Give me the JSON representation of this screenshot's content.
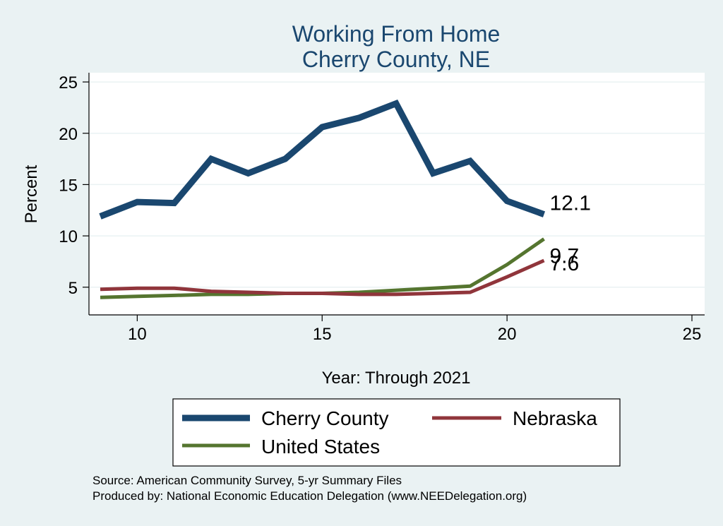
{
  "chart_data": {
    "type": "line",
    "title": [
      "Working From Home",
      "Cherry County, NE"
    ],
    "xlabel": "Year: Through 2021",
    "ylabel": "Percent",
    "xlim": [
      9,
      25
    ],
    "ylim": [
      2.3,
      25.9
    ],
    "xticks": [
      10,
      15,
      20,
      25
    ],
    "yticks": [
      5,
      10,
      15,
      20,
      25
    ],
    "grid": "horizontal",
    "legend_position": "bottom",
    "series": [
      {
        "name": "Cherry County",
        "color": "#1A476F",
        "x": [
          9,
          10,
          11,
          12,
          13,
          14,
          15,
          16,
          17,
          18,
          19,
          20,
          21
        ],
        "values": [
          11.9,
          13.3,
          13.2,
          17.5,
          16.1,
          17.5,
          20.6,
          21.5,
          22.9,
          16.1,
          17.3,
          13.4,
          12.1
        ],
        "end_label": "12.1"
      },
      {
        "name": "Nebraska",
        "color": "#90353B",
        "x": [
          9,
          10,
          11,
          12,
          13,
          14,
          15,
          16,
          17,
          18,
          19,
          20,
          21
        ],
        "values": [
          4.8,
          4.9,
          4.9,
          4.6,
          4.5,
          4.4,
          4.4,
          4.3,
          4.3,
          4.4,
          4.5,
          6.0,
          7.6
        ],
        "end_label": "7.6"
      },
      {
        "name": "United States",
        "color": "#55752F",
        "x": [
          9,
          10,
          11,
          12,
          13,
          14,
          15,
          16,
          17,
          18,
          19,
          20,
          21
        ],
        "values": [
          4.0,
          4.1,
          4.2,
          4.3,
          4.3,
          4.4,
          4.4,
          4.5,
          4.7,
          4.9,
          5.1,
          7.2,
          9.7
        ],
        "end_label": "9.7"
      }
    ],
    "legend": [
      "Cherry County",
      "Nebraska",
      "United States"
    ],
    "notes": [
      "Source: American Community Survey, 5-yr Summary Files",
      "Produced by: National Economic Education Delegation (www.NEEDelegation.org)"
    ]
  },
  "colors": {
    "background": "#EAF2F3",
    "plot_background": "#FFFFFF",
    "grid": "#EAF2F3",
    "title": "#1A476F"
  }
}
